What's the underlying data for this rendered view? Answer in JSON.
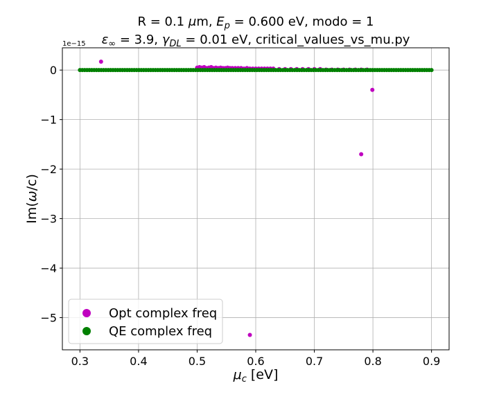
{
  "chart_data": {
    "type": "scatter",
    "title_line1": {
      "pre": "R = 0.1 ",
      "mu": "μ",
      "mid": "m, ",
      "E": "E",
      "p": "p",
      "post": " = 0.600 eV, modo = 1"
    },
    "title_line2": {
      "eps": "ε",
      "inf": "∞",
      "mid": " = 3.9, ",
      "gamma": "γ",
      "DL": "DL",
      "post": " = 0.01 eV, critical_values_vs_mu.py"
    },
    "xlabel": {
      "mu": "μ",
      "sub": "c",
      "unit": " [eV]"
    },
    "ylabel": {
      "pre": "Im(",
      "omega": "ω",
      "post": "/c)"
    },
    "y_offset_text": "1e−15",
    "xlim": [
      0.27,
      0.93
    ],
    "ylim": [
      -5.65,
      0.45
    ],
    "x_ticks": [
      0.3,
      0.4,
      0.5,
      0.6,
      0.7,
      0.8,
      0.9
    ],
    "x_tick_labels": [
      "0.3",
      "0.4",
      "0.5",
      "0.6",
      "0.7",
      "0.8",
      "0.9"
    ],
    "y_ticks": [
      0,
      -1,
      -2,
      -3,
      -4,
      -5
    ],
    "y_tick_labels": [
      "0",
      "−1",
      "−2",
      "−3",
      "−4",
      "−5"
    ],
    "grid": true,
    "legend_position": "lower-left",
    "series": [
      {
        "name": "Opt complex freq",
        "color": "#bf00bf",
        "points": [
          [
            0.336,
            0.17
          ],
          [
            0.5,
            0.05
          ],
          [
            0.504,
            0.06
          ],
          [
            0.508,
            0.05
          ],
          [
            0.512,
            0.06
          ],
          [
            0.516,
            0.04
          ],
          [
            0.52,
            0.05
          ],
          [
            0.524,
            0.06
          ],
          [
            0.528,
            0.04
          ],
          [
            0.532,
            0.05
          ],
          [
            0.536,
            0.04
          ],
          [
            0.54,
            0.05
          ],
          [
            0.544,
            0.04
          ],
          [
            0.548,
            0.04
          ],
          [
            0.552,
            0.05
          ],
          [
            0.556,
            0.04
          ],
          [
            0.56,
            0.04
          ],
          [
            0.565,
            0.04
          ],
          [
            0.57,
            0.04
          ],
          [
            0.575,
            0.04
          ],
          [
            0.58,
            0.03
          ],
          [
            0.585,
            0.04
          ],
          [
            0.59,
            0.03
          ],
          [
            0.595,
            0.03
          ],
          [
            0.6,
            0.03
          ],
          [
            0.605,
            0.03
          ],
          [
            0.61,
            0.03
          ],
          [
            0.615,
            0.03
          ],
          [
            0.62,
            0.03
          ],
          [
            0.625,
            0.03
          ],
          [
            0.63,
            0.03
          ],
          [
            0.64,
            0.02
          ],
          [
            0.65,
            0.02
          ],
          [
            0.66,
            0.02
          ],
          [
            0.67,
            0.02
          ],
          [
            0.68,
            0.02
          ],
          [
            0.69,
            0.02
          ],
          [
            0.7,
            0.02
          ],
          [
            0.71,
            0.02
          ],
          [
            0.72,
            0.01
          ],
          [
            0.73,
            0.01
          ],
          [
            0.74,
            0.01
          ],
          [
            0.75,
            0.01
          ],
          [
            0.76,
            0.01
          ],
          [
            0.77,
            0.01
          ],
          [
            0.78,
            0.01
          ],
          [
            0.79,
            0.01
          ],
          [
            0.78,
            -1.7
          ],
          [
            0.799,
            -0.4
          ],
          [
            0.59,
            -5.35
          ]
        ]
      },
      {
        "name": "QE complex freq",
        "color": "#008000",
        "x_start": 0.3,
        "x_end": 0.9,
        "y_value": 0
      }
    ]
  }
}
